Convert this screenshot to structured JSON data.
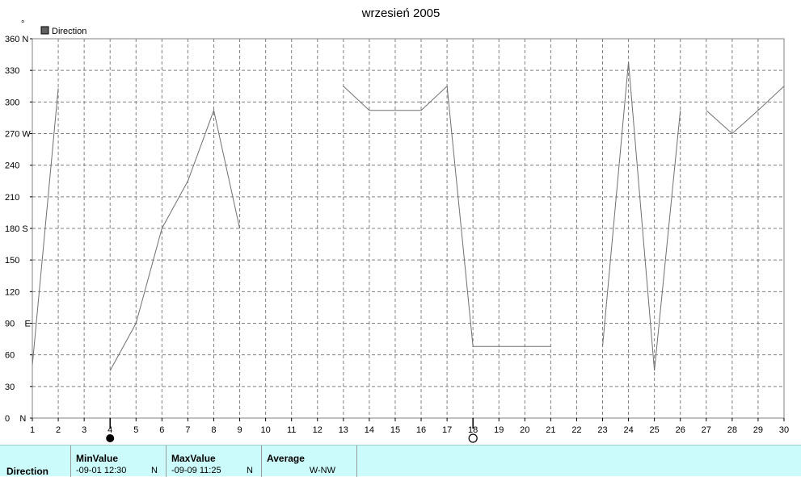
{
  "chart_data": {
    "type": "line",
    "title": "wrzesień 2005",
    "ylabel": "°",
    "legend": {
      "label": "Direction",
      "color": "#606060",
      "placement": "top-left"
    },
    "grid": true,
    "xlim": [
      1,
      30
    ],
    "ylim": [
      0,
      360
    ],
    "x_ticks": [
      "1",
      "2",
      "3",
      "4",
      "5",
      "6",
      "7",
      "8",
      "9",
      "10",
      "11",
      "12",
      "13",
      "14",
      "15",
      "16",
      "17",
      "18",
      "19",
      "20",
      "21",
      "22",
      "23",
      "24",
      "25",
      "26",
      "27",
      "28",
      "29",
      "30"
    ],
    "y_ticks": [
      {
        "value": 0,
        "label": "0    N"
      },
      {
        "value": 30,
        "label": "30"
      },
      {
        "value": 60,
        "label": "60"
      },
      {
        "value": 90,
        "label": "90    E"
      },
      {
        "value": 120,
        "label": "120"
      },
      {
        "value": 150,
        "label": "150"
      },
      {
        "value": 180,
        "label": "180 S"
      },
      {
        "value": 210,
        "label": "210"
      },
      {
        "value": 240,
        "label": "240"
      },
      {
        "value": 270,
        "label": "270 W"
      },
      {
        "value": 300,
        "label": "300"
      },
      {
        "value": 330,
        "label": "330"
      },
      {
        "value": 360,
        "label": "360 N"
      }
    ],
    "series": [
      {
        "name": "Direction",
        "segments": [
          [
            [
              1,
              50
            ],
            [
              2,
              313
            ]
          ],
          [
            [
              4,
              45
            ],
            [
              5,
              90
            ],
            [
              6,
              180
            ],
            [
              7,
              225
            ],
            [
              8,
              292
            ],
            [
              9,
              180
            ]
          ],
          [
            [
              13,
              315
            ],
            [
              14,
              292
            ],
            [
              15,
              292
            ],
            [
              16,
              292
            ],
            [
              17,
              315
            ],
            [
              18,
              68
            ],
            [
              19,
              68
            ],
            [
              20,
              68
            ],
            [
              21,
              68
            ]
          ],
          [
            [
              23,
              68
            ],
            [
              24,
              338
            ],
            [
              25,
              45
            ],
            [
              26,
              292
            ]
          ],
          [
            [
              27,
              292
            ],
            [
              28,
              270
            ],
            [
              29,
              292
            ],
            [
              30,
              315
            ]
          ]
        ]
      }
    ],
    "markers": [
      {
        "type": "min",
        "x": 4,
        "style": "filled-circle"
      },
      {
        "type": "max",
        "x": 18,
        "style": "open-circle"
      }
    ]
  },
  "stats": {
    "row_label": "Direction",
    "min": {
      "header": "MinValue",
      "date": "-09-01  12:30",
      "dir": "N"
    },
    "max": {
      "header": "MaxValue",
      "date": "-09-09  11:25",
      "dir": "N"
    },
    "avg": {
      "header": "Average",
      "value": "W-NW"
    }
  }
}
